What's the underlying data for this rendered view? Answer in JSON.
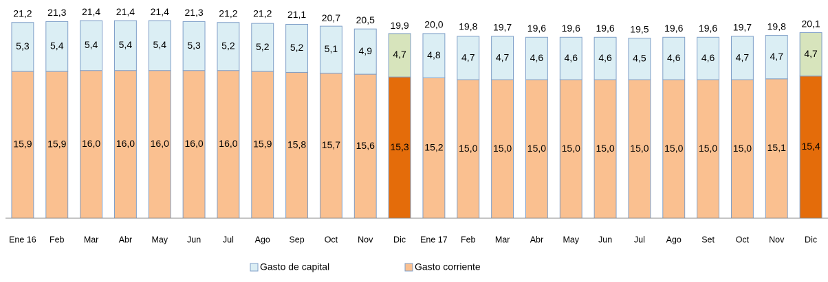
{
  "chart_data": {
    "type": "stacked_bar",
    "categories": [
      "Ene 16",
      "Feb",
      "Mar",
      "Abr",
      "May",
      "Jun",
      "Jul",
      "Ago",
      "Sep",
      "Oct",
      "Nov",
      "Dic",
      "Ene 17",
      "Feb",
      "Mar",
      "Abr",
      "May",
      "Jun",
      "Jul",
      "Ago",
      "Set",
      "Oct",
      "Nov",
      "Dic"
    ],
    "series": [
      {
        "name": "Gasto de capital",
        "color": "#dbeef4",
        "highlight_color": "#d7e4bc",
        "values": [
          5.3,
          5.4,
          5.4,
          5.4,
          5.4,
          5.3,
          5.2,
          5.2,
          5.2,
          5.1,
          4.9,
          4.7,
          4.8,
          4.7,
          4.7,
          4.6,
          4.6,
          4.6,
          4.5,
          4.6,
          4.6,
          4.7,
          4.7,
          4.7
        ],
        "value_labels": [
          "5,3",
          "5,4",
          "5,4",
          "5,4",
          "5,4",
          "5,3",
          "5,2",
          "5,2",
          "5,2",
          "5,1",
          "4,9",
          "4,7",
          "4,8",
          "4,7",
          "4,7",
          "4,6",
          "4,6",
          "4,6",
          "4,5",
          "4,6",
          "4,6",
          "4,7",
          "4,7",
          "4,7"
        ]
      },
      {
        "name": "Gasto corriente",
        "color": "#fac090",
        "highlight_color": "#e46c0a",
        "values": [
          15.9,
          15.9,
          16.0,
          16.0,
          16.0,
          16.0,
          16.0,
          15.9,
          15.8,
          15.7,
          15.6,
          15.3,
          15.2,
          15.0,
          15.0,
          15.0,
          15.0,
          15.0,
          15.0,
          15.0,
          15.0,
          15.0,
          15.1,
          15.4
        ],
        "value_labels": [
          "15,9",
          "15,9",
          "16,0",
          "16,0",
          "16,0",
          "16,0",
          "16,0",
          "15,9",
          "15,8",
          "15,7",
          "15,6",
          "15,3",
          "15,2",
          "15,0",
          "15,0",
          "15,0",
          "15,0",
          "15,0",
          "15,0",
          "15,0",
          "15,0",
          "15,0",
          "15,1",
          "15,4"
        ]
      }
    ],
    "totals": {
      "values": [
        21.2,
        21.3,
        21.4,
        21.4,
        21.4,
        21.3,
        21.2,
        21.2,
        21.1,
        20.7,
        20.5,
        19.9,
        20.0,
        19.8,
        19.7,
        19.6,
        19.6,
        19.6,
        19.5,
        19.6,
        19.6,
        19.7,
        19.8,
        20.1
      ],
      "value_labels": [
        "21,2",
        "21,3",
        "21,4",
        "21,4",
        "21,4",
        "21,3",
        "21,2",
        "21,2",
        "21,1",
        "20,7",
        "20,5",
        "19,9",
        "20,0",
        "19,8",
        "19,7",
        "19,6",
        "19,6",
        "19,6",
        "19,5",
        "19,6",
        "19,6",
        "19,7",
        "19,8",
        "20,1"
      ]
    },
    "highlight": [
      11,
      23
    ],
    "ylim": [
      0,
      22
    ],
    "legend": "bottom"
  }
}
